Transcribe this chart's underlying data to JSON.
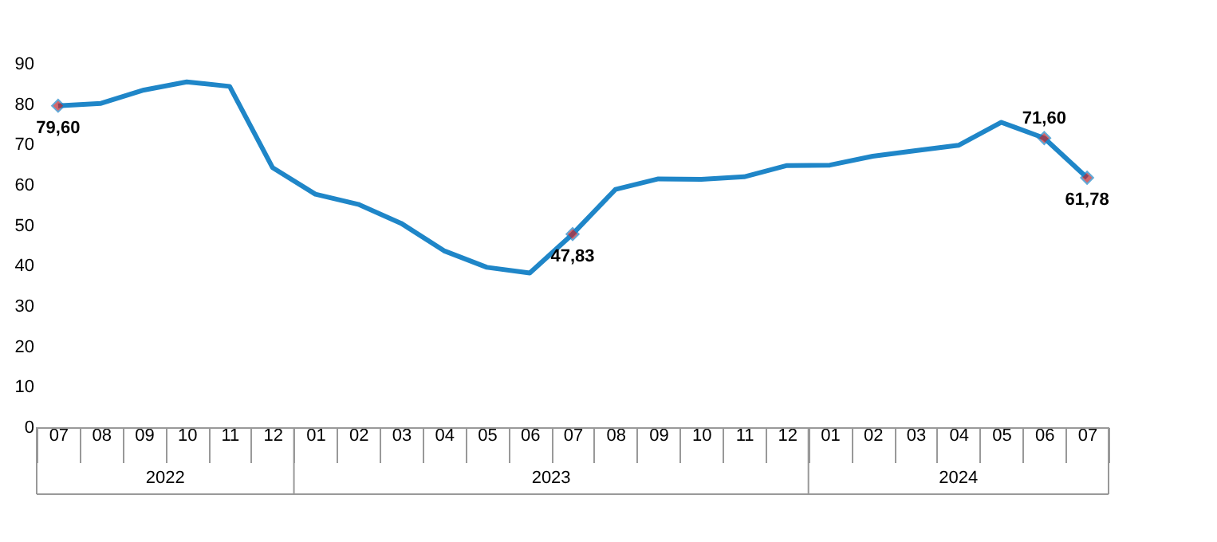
{
  "chart_data": {
    "type": "line",
    "categories": [
      "07",
      "08",
      "09",
      "10",
      "11",
      "12",
      "01",
      "02",
      "03",
      "04",
      "05",
      "06",
      "07",
      "08",
      "09",
      "10",
      "11",
      "12",
      "01",
      "02",
      "03",
      "04",
      "05",
      "06",
      "07"
    ],
    "annotations": [
      "2022",
      "2023",
      "2024"
    ],
    "series": [
      {
        "color": "#1f86c8",
        "values": [
          79.6,
          80.2,
          83.5,
          85.5,
          84.4,
          64.3,
          57.7,
          55.2,
          50.5,
          43.7,
          39.6,
          38.2,
          47.83,
          58.9,
          61.5,
          61.4,
          62.0,
          64.8,
          64.9,
          67.1,
          68.5,
          69.8,
          75.5,
          71.6,
          61.78
        ],
        "value_labels": [
          "79,60",
          null,
          null,
          null,
          null,
          null,
          null,
          null,
          null,
          null,
          null,
          null,
          "47,83",
          null,
          null,
          null,
          null,
          null,
          null,
          null,
          null,
          null,
          null,
          "71,60",
          "61,78"
        ]
      }
    ],
    "ylim": [
      0,
      90
    ],
    "yticks": [
      0,
      10,
      20,
      30,
      40,
      50,
      60,
      70,
      80,
      90
    ],
    "grid": false,
    "marker": "none",
    "line_style": "solid"
  }
}
